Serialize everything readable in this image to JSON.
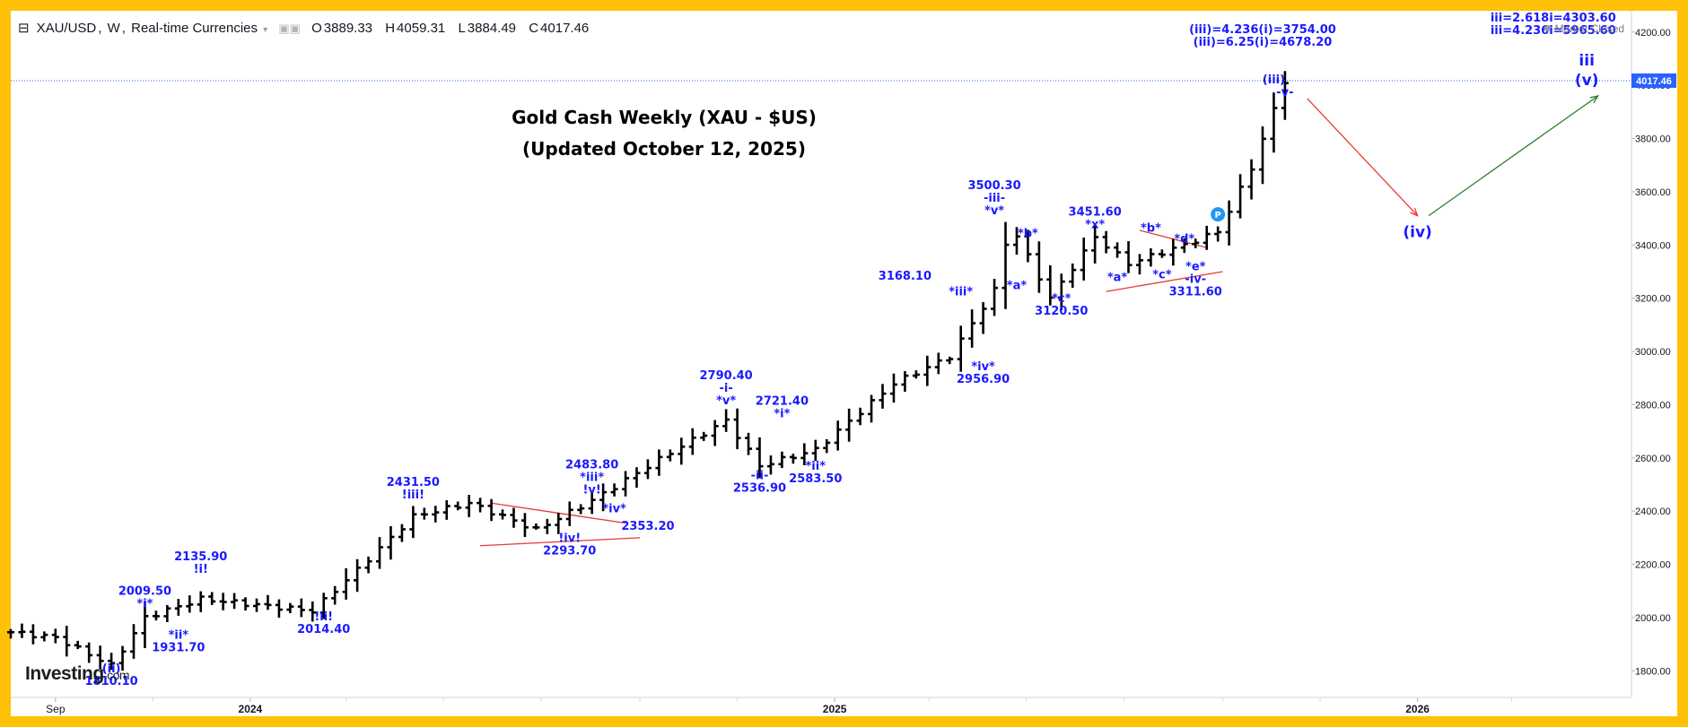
{
  "header": {
    "symbol": "XAU/USD",
    "interval": "W",
    "source": "Real-time Currencies",
    "open_label": "O",
    "open": "3889.33",
    "high_label": "H",
    "high": "4059.31",
    "low_label": "L",
    "low": "3884.49",
    "close_label": "C",
    "close": "4017.46"
  },
  "status": {
    "market": "Market Closed"
  },
  "branding": {
    "logo": "Investing",
    "logo_suffix": ".com"
  },
  "colors": {
    "frame": "#ffc107",
    "bars": "#000000",
    "labels": "#1a1aff",
    "trendline": "#e53935",
    "projection_up": "#2e7d32",
    "price_line": "#2962ff"
  },
  "chart_data": {
    "type": "ohlc",
    "title": "Gold Cash Weekly (XAU - $US)",
    "subtitle": "(Updated October 12, 2025)",
    "ylim": [
      1700,
      4280
    ],
    "y_ticks": [
      "4200.00",
      "4000.00",
      "3800.00",
      "3600.00",
      "3400.00",
      "3200.00",
      "3000.00",
      "2800.00",
      "2600.00",
      "2400.00",
      "2200.00",
      "2000.00",
      "1800.00"
    ],
    "x_ticks": [
      {
        "label": "Sep",
        "date": "2023-09-01"
      },
      {
        "label": "2024",
        "date": "2024-01-01"
      },
      {
        "label": "2025",
        "date": "2025-01-01"
      },
      {
        "label": "2026",
        "date": "2026-01-01"
      }
    ],
    "x_range": [
      "2023-08-04",
      "2026-05-15"
    ],
    "last_price": "4017.46",
    "anchor": [
      [
        "2023-08-04",
        1945
      ],
      [
        "2023-09-01",
        1925
      ],
      [
        "2023-10-06",
        1820
      ],
      [
        "2023-10-27",
        2000
      ],
      [
        "2023-12-01",
        2070
      ],
      [
        "2024-02-09",
        2025
      ],
      [
        "2024-03-08",
        2180
      ],
      [
        "2024-04-12",
        2380
      ],
      [
        "2024-05-17",
        2430
      ],
      [
        "2024-06-28",
        2330
      ],
      [
        "2024-08-02",
        2440
      ],
      [
        "2024-09-20",
        2620
      ],
      [
        "2024-10-25",
        2740
      ],
      [
        "2024-11-15",
        2570
      ],
      [
        "2024-12-20",
        2630
      ],
      [
        "2025-02-07",
        2880
      ],
      [
        "2025-03-14",
        2980
      ],
      [
        "2025-04-11",
        3230
      ],
      [
        "2025-04-21",
        3480
      ],
      [
        "2025-05-16",
        3200
      ],
      [
        "2025-06-13",
        3430
      ],
      [
        "2025-07-04",
        3330
      ],
      [
        "2025-08-08",
        3400
      ],
      [
        "2025-08-29",
        3450
      ],
      [
        "2025-09-19",
        3690
      ],
      [
        "2025-10-10",
        4017
      ]
    ],
    "annotations": [
      {
        "lines": [
          "(iii)=4.236(i)=3754.00",
          "(iii)=6.25(i)=4678.20"
        ],
        "date": "2025-09-26",
        "price": 4195
      },
      {
        "lines": [
          "iii=2.618i=4303.60",
          "iii=4.236i=5965.60"
        ],
        "date": "2026-03-27",
        "price": 4240
      },
      {
        "lines": [
          "iii"
        ],
        "date": "2026-04-17",
        "price": 4075,
        "large": true
      },
      {
        "lines": [
          "(v)"
        ],
        "date": "2026-04-17",
        "price": 4000,
        "large": true
      },
      {
        "lines": [
          "(iii)"
        ],
        "date": "2025-10-03",
        "price": 4008
      },
      {
        "lines": [
          "-v-"
        ],
        "date": "2025-10-10",
        "price": 3960
      },
      {
        "lines": [
          "(iv)"
        ],
        "date": "2026-01-01",
        "price": 3430,
        "large": true
      },
      {
        "lines": [
          "P"
        ],
        "date": "2025-08-29",
        "price": 3515,
        "badge": true
      },
      {
        "lines": [
          "3500.30",
          "-iii-",
          "*v*"
        ],
        "date": "2025-04-11",
        "price": 3610
      },
      {
        "lines": [
          "*b*"
        ],
        "date": "2025-05-02",
        "price": 3430
      },
      {
        "lines": [
          "*a*"
        ],
        "date": "2025-04-25",
        "price": 3235
      },
      {
        "lines": [
          "*c*",
          "3120.50"
        ],
        "date": "2025-05-23",
        "price": 3185
      },
      {
        "lines": [
          "3451.60",
          "*x*"
        ],
        "date": "2025-06-13",
        "price": 3510
      },
      {
        "lines": [
          "*a*"
        ],
        "date": "2025-06-27",
        "price": 3265
      },
      {
        "lines": [
          "*b*"
        ],
        "date": "2025-07-18",
        "price": 3450
      },
      {
        "lines": [
          "*d*"
        ],
        "date": "2025-08-08",
        "price": 3410
      },
      {
        "lines": [
          "*c*"
        ],
        "date": "2025-07-25",
        "price": 3275
      },
      {
        "lines": [
          "*e*",
          "-iv-",
          "3311.60"
        ],
        "date": "2025-08-15",
        "price": 3305
      },
      {
        "lines": [
          "3168.10"
        ],
        "date": "2025-02-14",
        "price": 3270
      },
      {
        "lines": [
          "*iii*"
        ],
        "date": "2025-03-21",
        "price": 3210
      },
      {
        "lines": [
          "*iv*",
          "2956.90"
        ],
        "date": "2025-04-04",
        "price": 2930
      },
      {
        "lines": [
          "2790.40",
          "-i-",
          "*v*"
        ],
        "date": "2024-10-25",
        "price": 2895
      },
      {
        "lines": [
          "2721.40",
          "*i*"
        ],
        "date": "2024-11-29",
        "price": 2800
      },
      {
        "lines": [
          "-ii-",
          "2536.90"
        ],
        "date": "2024-11-15",
        "price": 2520
      },
      {
        "lines": [
          "*ii*",
          "2583.50"
        ],
        "date": "2024-12-20",
        "price": 2555
      },
      {
        "lines": [
          "2483.80",
          "*iii*",
          "!v!"
        ],
        "date": "2024-08-02",
        "price": 2560
      },
      {
        "lines": [
          "*iv*"
        ],
        "date": "2024-08-16",
        "price": 2395
      },
      {
        "lines": [
          "2353.20"
        ],
        "date": "2024-09-06",
        "price": 2330
      },
      {
        "lines": [
          "!iv!",
          "2293.70"
        ],
        "date": "2024-07-19",
        "price": 2285
      },
      {
        "lines": [
          "2431.50",
          "!iii!"
        ],
        "date": "2024-04-12",
        "price": 2495
      },
      {
        "lines": [
          "!ii!",
          "2014.40"
        ],
        "date": "2024-02-16",
        "price": 1990
      },
      {
        "lines": [
          "2135.90",
          "!i!"
        ],
        "date": "2023-12-01",
        "price": 2215
      },
      {
        "lines": [
          "2009.50",
          "*i*"
        ],
        "date": "2023-10-27",
        "price": 2085
      },
      {
        "lines": [
          "*ii*",
          "1931.70"
        ],
        "date": "2023-11-17",
        "price": 1920
      },
      {
        "lines": [
          "(ii)",
          "1810.10"
        ],
        "date": "2023-10-06",
        "price": 1795
      }
    ],
    "trendlines": [
      {
        "from": [
          "2024-05-31",
          2430
        ],
        "to": [
          "2024-08-23",
          2355
        ],
        "color": "#e53935"
      },
      {
        "from": [
          "2024-05-24",
          2270
        ],
        "to": [
          "2024-09-01",
          2300
        ],
        "color": "#e53935"
      },
      {
        "from": [
          "2025-06-20",
          3225
        ],
        "to": [
          "2025-09-01",
          3300
        ],
        "color": "#e53935"
      },
      {
        "from": [
          "2025-07-11",
          3455
        ],
        "to": [
          "2025-08-22",
          3390
        ],
        "color": "#e53935"
      }
    ],
    "projections": [
      {
        "from": [
          "2025-10-24",
          3950
        ],
        "to": [
          "2026-01-01",
          3510
        ],
        "color": "#e53935"
      },
      {
        "from": [
          "2026-01-08",
          3510
        ],
        "to": [
          "2026-04-24",
          3960
        ],
        "color": "#2e7d32"
      }
    ]
  }
}
